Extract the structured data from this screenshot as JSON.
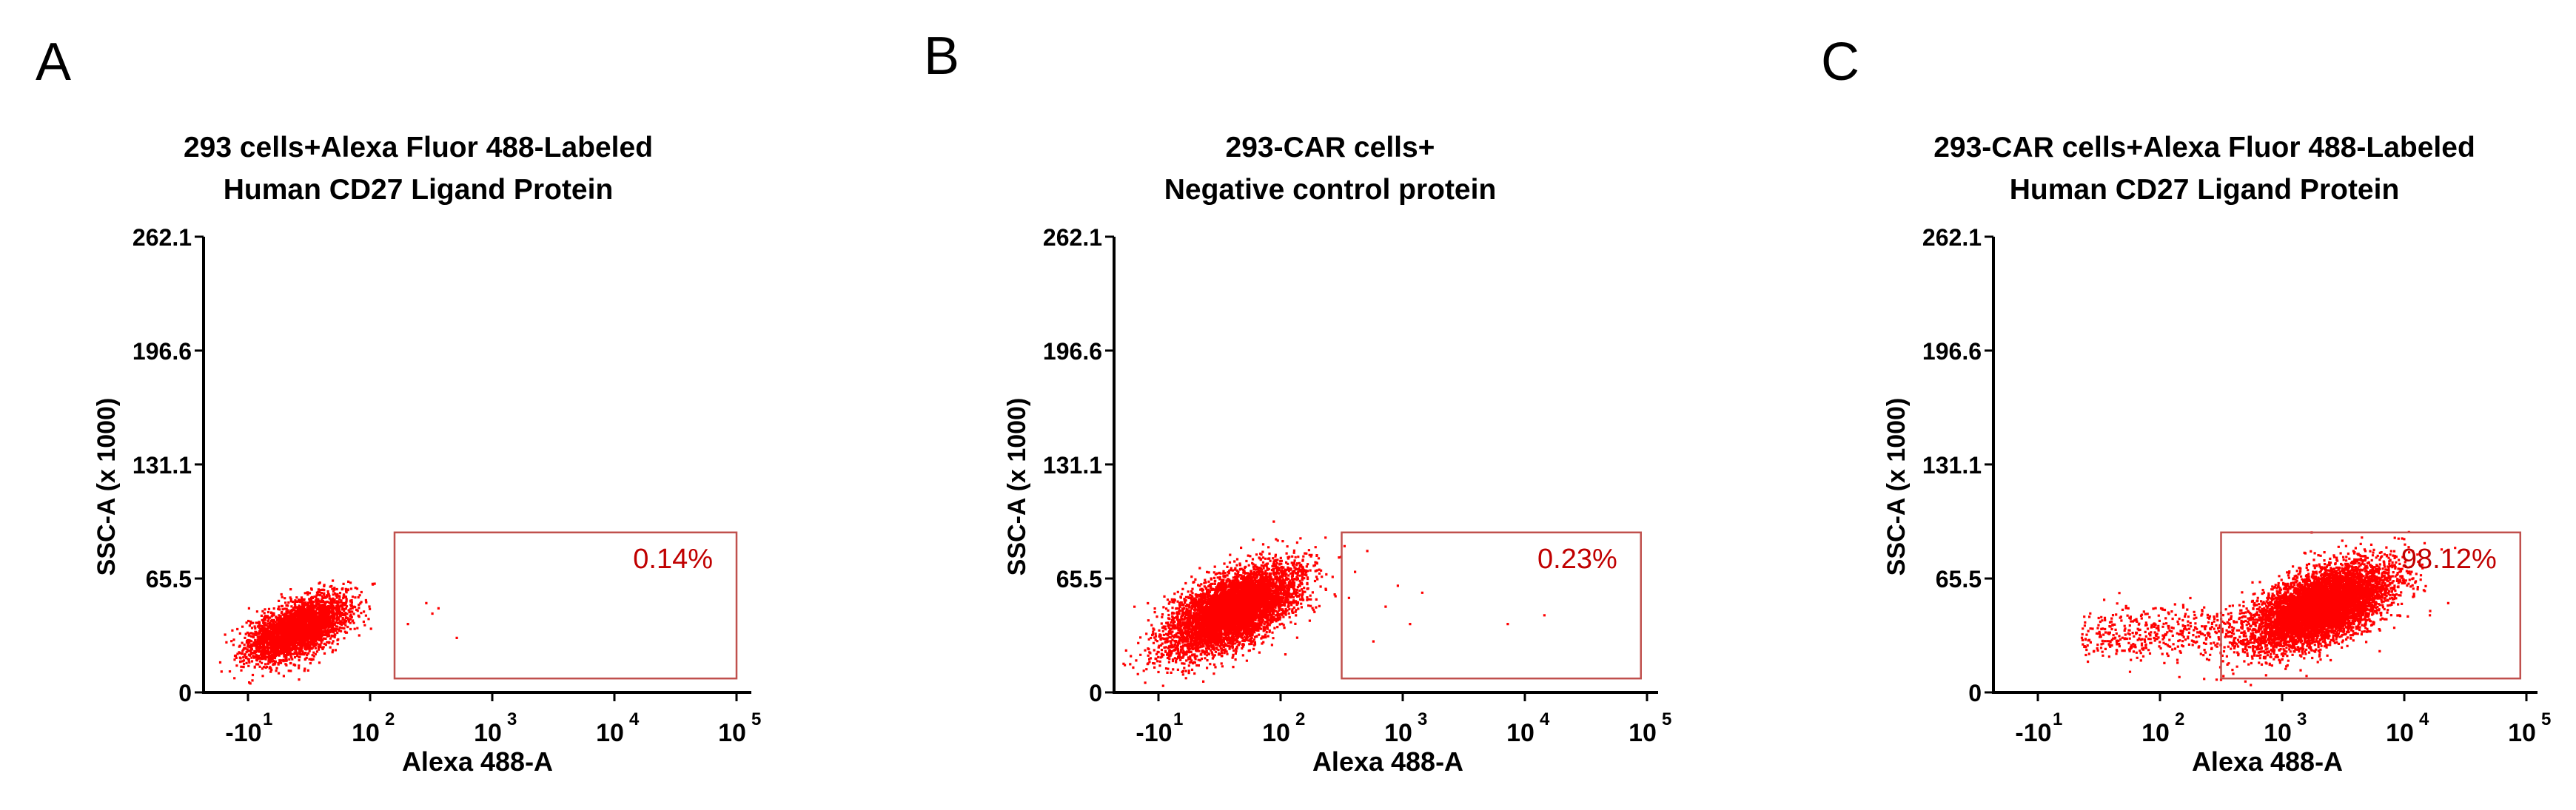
{
  "figure": {
    "panels": [
      {
        "label": "A",
        "title_lines": [
          "293 cells+Alexa Fluor 488-Labeled",
          "Human CD27 Ligand Protein"
        ],
        "gate_label": "0.14%"
      },
      {
        "label": "B",
        "title_lines": [
          "293-CAR cells+",
          "Negative control protein"
        ],
        "gate_label": "0.23%"
      },
      {
        "label": "C",
        "title_lines": [
          "293-CAR cells+Alexa Fluor 488-Labeled",
          "Human CD27 Ligand Protein"
        ],
        "gate_label": "98.12%"
      }
    ]
  },
  "colors": {
    "dots": "#ff0000",
    "gate": "#c0504d",
    "gate_text": "#c00000",
    "axis": "#000000"
  },
  "chart_data": [
    {
      "type": "scatter",
      "title": "293 cells+Alexa Fluor 488-Labeled Human CD27 Ligand Protein",
      "xlabel": "Alexa 488-A",
      "ylabel": "SSC-A (x 1000)",
      "x_scale": "biexponential",
      "x_tick_labels": [
        {
          "base": "-10",
          "exp": "1"
        },
        {
          "base": "10",
          "exp": "2"
        },
        {
          "base": "10",
          "exp": "3"
        },
        {
          "base": "10",
          "exp": "4"
        },
        {
          "base": "10",
          "exp": "5"
        }
      ],
      "y_ticks": [
        0,
        65.5,
        131.1,
        196.6,
        262.1
      ],
      "y_tick_labels": [
        "0",
        "65.5",
        "131.1",
        "196.6",
        "262.1"
      ],
      "ylim": [
        0,
        262.1
      ],
      "gate": {
        "x_log10_range": [
          2.2,
          5.0
        ],
        "y_range": [
          8,
          92
        ],
        "percentage": "0.14%"
      },
      "population": {
        "center_x_log10": 1.4,
        "center_y": 37,
        "spread_x": 0.2,
        "spread_y": 7.5,
        "tilt": 9,
        "count": 3500
      },
      "outliers": [
        [
          2.5,
          46
        ],
        [
          2.7,
          32
        ],
        [
          2.45,
          52
        ],
        [
          2.3,
          40
        ],
        [
          2.55,
          49
        ]
      ]
    },
    {
      "type": "scatter",
      "title": "293-CAR cells+ Negative control protein",
      "xlabel": "Alexa 488-A",
      "ylabel": "SSC-A (x 1000)",
      "x_scale": "biexponential",
      "x_tick_labels": [
        {
          "base": "-10",
          "exp": "1"
        },
        {
          "base": "10",
          "exp": "2"
        },
        {
          "base": "10",
          "exp": "3"
        },
        {
          "base": "10",
          "exp": "4"
        },
        {
          "base": "10",
          "exp": "5"
        }
      ],
      "y_ticks": [
        0,
        65.5,
        131.1,
        196.6,
        262.1
      ],
      "y_tick_labels": [
        "0",
        "65.5",
        "131.1",
        "196.6",
        "262.1"
      ],
      "ylim": [
        0,
        262.1
      ],
      "gate": {
        "x_log10_range": [
          2.5,
          4.95
        ],
        "y_range": [
          8,
          92
        ],
        "percentage": "0.23%"
      },
      "population": {
        "center_x_log10": 1.6,
        "center_y": 48,
        "spread_x": 0.26,
        "spread_y": 10,
        "tilt": 13,
        "count": 6000
      },
      "outliers": [
        [
          2.7,
          82
        ],
        [
          2.95,
          62
        ],
        [
          3.15,
          58
        ],
        [
          2.85,
          50
        ],
        [
          3.05,
          40
        ],
        [
          3.85,
          40
        ],
        [
          4.15,
          45
        ],
        [
          2.75,
          30
        ],
        [
          2.6,
          70
        ],
        [
          2.55,
          55
        ]
      ]
    },
    {
      "type": "scatter",
      "title": "293-CAR cells+Alexa Fluor 488-Labeled Human CD27 Ligand Protein",
      "xlabel": "Alexa 488-A",
      "ylabel": "SSC-A (x 1000)",
      "x_scale": "biexponential",
      "x_tick_labels": [
        {
          "base": "-10",
          "exp": "1"
        },
        {
          "base": "10",
          "exp": "2"
        },
        {
          "base": "10",
          "exp": "3"
        },
        {
          "base": "10",
          "exp": "4"
        },
        {
          "base": "10",
          "exp": "5"
        }
      ],
      "y_ticks": [
        0,
        65.5,
        131.1,
        196.6,
        262.1
      ],
      "y_tick_labels": [
        "0",
        "65.5",
        "131.1",
        "196.6",
        "262.1"
      ],
      "ylim": [
        0,
        262.1
      ],
      "gate": {
        "x_log10_range": [
          2.5,
          4.95
        ],
        "y_range": [
          8,
          92
        ],
        "percentage": "98.12%"
      },
      "population": {
        "center_x_log10": 3.3,
        "center_y": 50,
        "spread_x": 0.28,
        "spread_y": 10,
        "tilt": 12,
        "count": 7000
      },
      "tail": {
        "x_log10_range": [
          1.35,
          2.6
        ],
        "center_y": 35,
        "spread_y": 8,
        "count": 450
      },
      "outliers": [
        [
          4.2,
          45
        ],
        [
          4.35,
          52
        ],
        [
          3.9,
          60
        ],
        [
          4.05,
          70
        ]
      ]
    }
  ]
}
